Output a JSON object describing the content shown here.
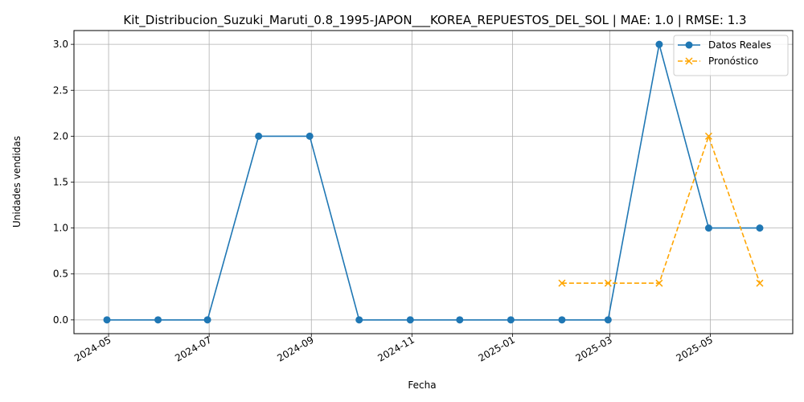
{
  "chart_data": {
    "type": "line",
    "title": "Kit_Distribucion_Suzuki_Maruti_0.8_1995-JAPON___KOREA_REPUESTOS_DEL_SOL | MAE: 1.0 | RMSE: 1.3",
    "xlabel": "Fecha",
    "ylabel": "Unidades vendidas",
    "xlim": [
      "2024-04-10",
      "2025-06-20"
    ],
    "ylim": [
      -0.15,
      3.15
    ],
    "grid": true,
    "legend_position": "top-right",
    "x_ticks": [
      {
        "date": "2024-05-01",
        "label": "2024-05"
      },
      {
        "date": "2024-07-01",
        "label": "2024-07"
      },
      {
        "date": "2024-09-01",
        "label": "2024-09"
      },
      {
        "date": "2024-11-01",
        "label": "2024-11"
      },
      {
        "date": "2025-01-01",
        "label": "2025-01"
      },
      {
        "date": "2025-03-01",
        "label": "2025-03"
      },
      {
        "date": "2025-05-01",
        "label": "2025-05"
      }
    ],
    "y_ticks": [
      {
        "value": 0.0,
        "label": "0.0"
      },
      {
        "value": 0.5,
        "label": "0.5"
      },
      {
        "value": 1.0,
        "label": "1.0"
      },
      {
        "value": 1.5,
        "label": "1.5"
      },
      {
        "value": 2.0,
        "label": "2.0"
      },
      {
        "value": 2.5,
        "label": "2.5"
      },
      {
        "value": 3.0,
        "label": "3.0"
      }
    ],
    "series": [
      {
        "name": "Datos Reales",
        "color": "#1f77b4",
        "line_style": "solid",
        "marker": "circle",
        "x": [
          "2024-04-30",
          "2024-05-31",
          "2024-06-30",
          "2024-07-31",
          "2024-08-31",
          "2024-09-30",
          "2024-10-31",
          "2024-11-30",
          "2024-12-31",
          "2025-01-31",
          "2025-02-28",
          "2025-03-31",
          "2025-04-30",
          "2025-05-31"
        ],
        "y": [
          0,
          0,
          0,
          2,
          2,
          0,
          0,
          0,
          0,
          0,
          0,
          3,
          1,
          1
        ]
      },
      {
        "name": "Pronóstico",
        "color": "#ffa500",
        "line_style": "dashed",
        "marker": "x",
        "x": [
          "2025-01-31",
          "2025-02-28",
          "2025-03-31",
          "2025-04-30",
          "2025-05-31"
        ],
        "y": [
          0.4,
          0.4,
          0.4,
          2.0,
          0.4
        ]
      }
    ]
  }
}
